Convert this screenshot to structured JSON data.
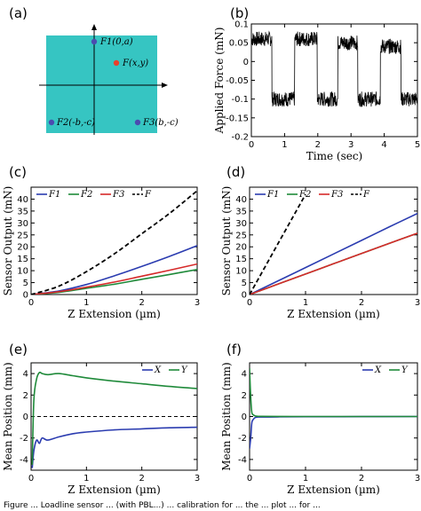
{
  "figure": {
    "panel_labels": [
      "(a)",
      "(b)",
      "(c)",
      "(d)",
      "(e)",
      "(f)"
    ],
    "caption": "Figure ... Loadline sensor ... (with PBL...) ... calibration for ... the ... plot ... for ..."
  },
  "diagram_a": {
    "background_color": "#36c5c2",
    "points": [
      {
        "label": "F1(0,a)",
        "color": "#4b4bb0"
      },
      {
        "label": "F(x,y)",
        "color": "#e8402b"
      },
      {
        "label": "F2(-b,-c)",
        "color": "#4b4bb0"
      },
      {
        "label": "F3(b,-c)",
        "color": "#4b4bb0"
      }
    ]
  },
  "colors": {
    "F1": "#2b3cb0",
    "F2": "#1f8a3a",
    "F3": "#d62a2a",
    "F": "#000000",
    "X": "#2b3cb0",
    "Y": "#1f8a3a"
  },
  "chart_data": [
    {
      "panel": "(b)",
      "type": "line",
      "xlabel": "Time (sec)",
      "ylabel": "Applied Force (mN)",
      "xlim": [
        0,
        5
      ],
      "ylim": [
        -0.2,
        0.1
      ],
      "xticks": [
        0,
        1,
        2,
        3,
        4,
        5
      ],
      "yticks": [
        -0.2,
        -0.15,
        -0.1,
        -0.05,
        0,
        0.05,
        0.1
      ],
      "ytick_labels": [
        "-0.2",
        "-0.15",
        "-0.1",
        "-0.05",
        "0",
        "0.05",
        "0.1"
      ],
      "square_wave_levels": [
        {
          "t0": 0.0,
          "t1": 0.62,
          "level": 0.06
        },
        {
          "t0": 0.62,
          "t1": 1.3,
          "level": -0.1
        },
        {
          "t0": 1.3,
          "t1": 1.98,
          "level": 0.06
        },
        {
          "t0": 1.98,
          "t1": 2.6,
          "level": -0.1
        },
        {
          "t0": 2.6,
          "t1": 3.2,
          "level": 0.05
        },
        {
          "t0": 3.2,
          "t1": 3.88,
          "level": -0.1
        },
        {
          "t0": 3.88,
          "t1": 4.5,
          "level": 0.04
        },
        {
          "t0": 4.5,
          "t1": 5.0,
          "level": -0.1
        }
      ],
      "noise_amplitude": 0.02
    },
    {
      "panel": "(c)",
      "type": "line",
      "xlabel": "Z Extension (µm)",
      "ylabel": "Sensor Output (mN)",
      "xlim": [
        0,
        3
      ],
      "ylim": [
        0,
        45
      ],
      "xticks": [
        0,
        1,
        2,
        3
      ],
      "yticks": [
        0,
        5,
        10,
        15,
        20,
        25,
        30,
        35,
        40
      ],
      "legend": [
        "F1",
        "F2",
        "F3",
        "F"
      ],
      "x": [
        0,
        0.5,
        1,
        1.5,
        2,
        2.5,
        3
      ],
      "series": [
        {
          "name": "F1",
          "values": [
            0,
            1.5,
            4.2,
            7.8,
            11.8,
            16.0,
            20.5
          ]
        },
        {
          "name": "F2",
          "values": [
            0,
            0.9,
            2.6,
            4.3,
            6.4,
            8.4,
            10.5
          ]
        },
        {
          "name": "F3",
          "values": [
            0,
            1.2,
            3.1,
            5.2,
            7.7,
            10.2,
            12.8
          ]
        },
        {
          "name": "F",
          "values": [
            0,
            3.5,
            9.6,
            17.0,
            25.5,
            34.0,
            43.5
          ]
        }
      ]
    },
    {
      "panel": "(d)",
      "type": "line",
      "xlabel": "Z Extension (µm)",
      "ylabel": "Sensor Output (mN)",
      "xlim": [
        0,
        3
      ],
      "ylim": [
        0,
        45
      ],
      "xticks": [
        0,
        1,
        2,
        3
      ],
      "yticks": [
        0,
        5,
        10,
        15,
        20,
        25,
        30,
        35,
        40
      ],
      "legend": [
        "F1",
        "F2",
        "F3",
        "F"
      ],
      "x": [
        0,
        0.5,
        1,
        1.5,
        2,
        2.5,
        3
      ],
      "series": [
        {
          "name": "F1",
          "values": [
            0,
            5.6,
            11.3,
            17.0,
            22.7,
            28.4,
            34.0
          ]
        },
        {
          "name": "F2",
          "values": [
            0,
            4.3,
            8.6,
            12.9,
            17.2,
            21.5,
            25.7
          ]
        },
        {
          "name": "F3",
          "values": [
            0,
            4.3,
            8.6,
            12.9,
            17.2,
            21.5,
            25.7
          ]
        },
        {
          "name": "F",
          "values": [
            0,
            21,
            42,
            null,
            null,
            null,
            null
          ]
        }
      ]
    },
    {
      "panel": "(e)",
      "type": "line",
      "xlabel": "Z Extension (µm)",
      "ylabel": "Mean Position (mm)",
      "xlim": [
        0,
        3
      ],
      "ylim": [
        -5,
        5
      ],
      "xticks": [
        0,
        1,
        2,
        3
      ],
      "yticks": [
        -4,
        -2,
        0,
        2,
        4
      ],
      "ytick_labels": [
        "-4",
        "-2",
        "0",
        "2",
        "4"
      ],
      "legend": [
        "X",
        "Y"
      ],
      "x": [
        0.02,
        0.05,
        0.1,
        0.15,
        0.2,
        0.3,
        0.5,
        0.75,
        1,
        1.5,
        2,
        2.5,
        3
      ],
      "series": [
        {
          "name": "X",
          "values": [
            -4.8,
            -3.2,
            -2.2,
            -2.5,
            -2.0,
            -2.2,
            -1.9,
            -1.6,
            -1.45,
            -1.25,
            -1.15,
            -1.05,
            -1.0
          ]
        },
        {
          "name": "Y",
          "values": [
            -4.5,
            1.5,
            3.5,
            4.1,
            4.0,
            3.9,
            4.0,
            3.8,
            3.6,
            3.3,
            3.05,
            2.8,
            2.6
          ]
        }
      ]
    },
    {
      "panel": "(f)",
      "type": "line",
      "xlabel": "Z Extension (µm)",
      "ylabel": "Mean Position (mm)",
      "xlim": [
        0,
        3
      ],
      "ylim": [
        -5,
        5
      ],
      "xticks": [
        0,
        1,
        2,
        3
      ],
      "yticks": [
        -4,
        -2,
        0,
        2,
        4
      ],
      "ytick_labels": [
        "-4",
        "-2",
        "0",
        "2",
        "4"
      ],
      "legend": [
        "X",
        "Y"
      ],
      "x": [
        0.0,
        0.02,
        0.04,
        0.07,
        0.1,
        0.15,
        0.2,
        0.5,
        1,
        2,
        3
      ],
      "series": [
        {
          "name": "X",
          "values": [
            -3.0,
            -2.0,
            -0.6,
            -0.25,
            -0.1,
            -0.05,
            -0.05,
            -0.03,
            -0.02,
            -0.01,
            0.0
          ]
        },
        {
          "name": "Y",
          "values": [
            4.5,
            1.8,
            0.4,
            0.15,
            0.05,
            0.02,
            0.02,
            0.01,
            0.0,
            0.0,
            0.0
          ]
        }
      ]
    }
  ]
}
